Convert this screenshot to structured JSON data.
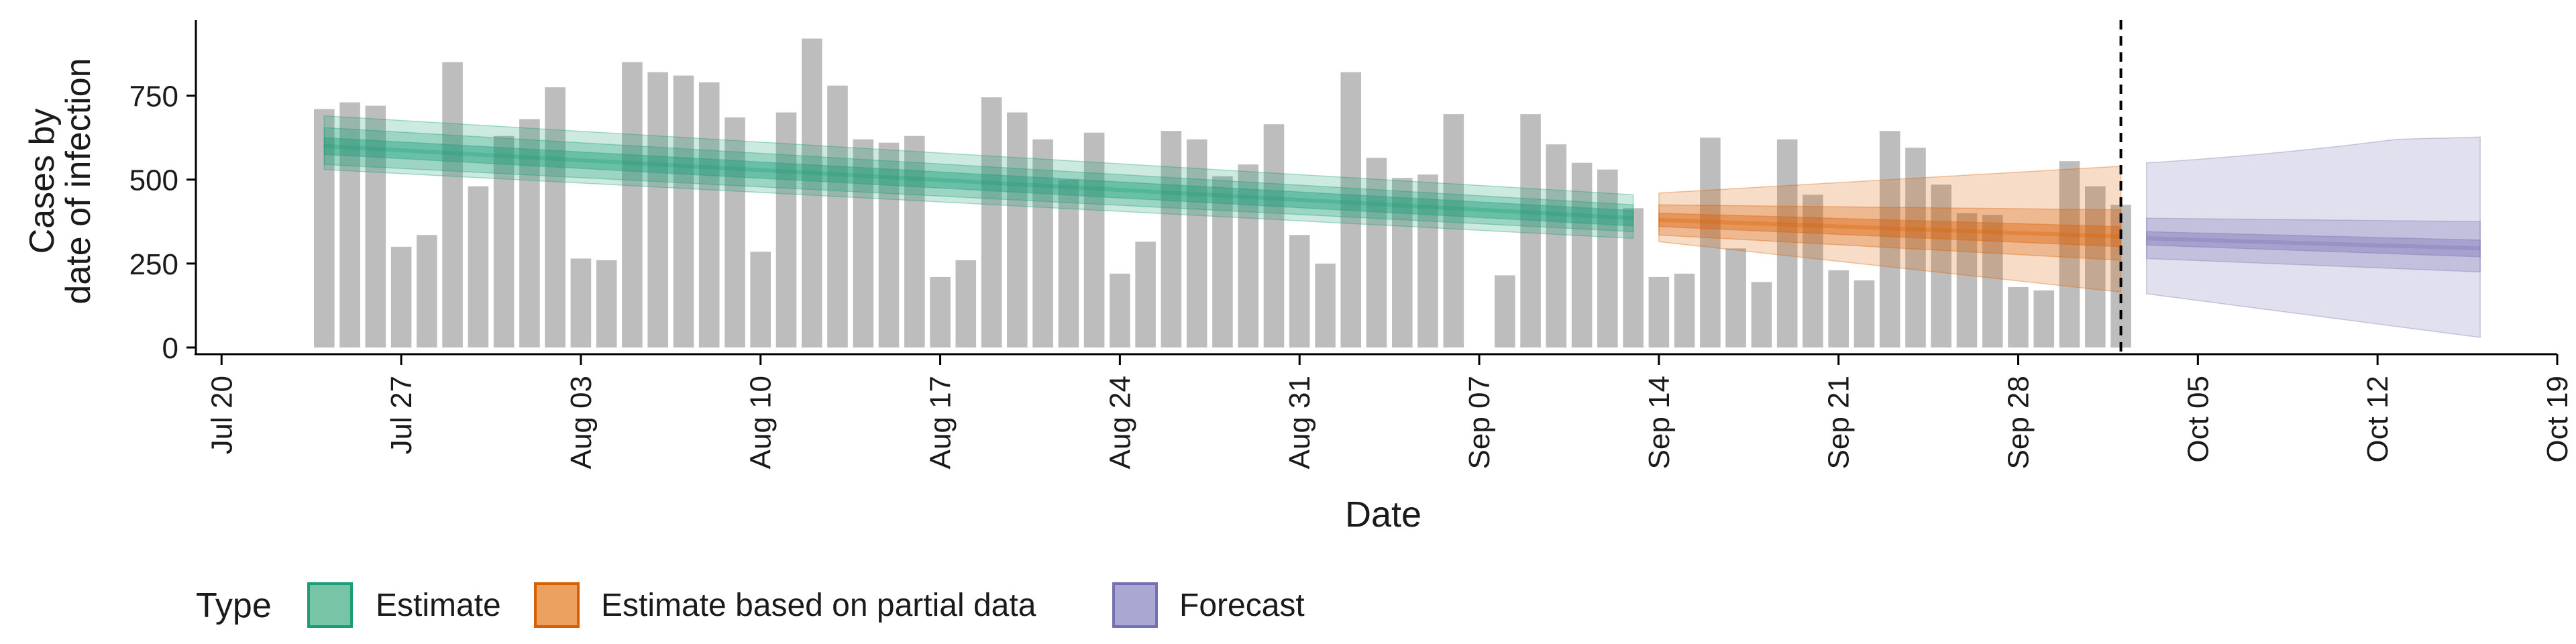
{
  "chart_data": {
    "type": "bar",
    "xlabel": "Date",
    "ylabel_lines": [
      "Cases by",
      "date of infection"
    ],
    "ylim": [
      -20,
      975
    ],
    "xlim": [
      "2020-07-19",
      "2020-10-19"
    ],
    "y_ticks": [
      0,
      250,
      500,
      750
    ],
    "y_tick_labels": [
      "0",
      "250",
      "500",
      "750"
    ],
    "x_ticks": [
      "2020-07-20",
      "2020-07-27",
      "2020-08-03",
      "2020-08-10",
      "2020-08-17",
      "2020-08-24",
      "2020-08-31",
      "2020-09-07",
      "2020-09-14",
      "2020-09-21",
      "2020-09-28",
      "2020-10-05",
      "2020-10-12",
      "2020-10-19"
    ],
    "x_tick_labels": [
      "Jul 20",
      "Jul 27",
      "Aug 03",
      "Aug 10",
      "Aug 17",
      "Aug 24",
      "Aug 31",
      "Sep 07",
      "Sep 14",
      "Sep 21",
      "Sep 28",
      "Oct 05",
      "Oct 12",
      "Oct 19"
    ],
    "grid": false,
    "legend_position": "bottom-left",
    "legend_title": "Type",
    "bar_color": "#bdbdbd",
    "dashed_line_date": "2020-10-02",
    "bars": {
      "start_date": "2020-07-24",
      "values": [
        710,
        730,
        720,
        300,
        335,
        850,
        480,
        630,
        680,
        775,
        265,
        260,
        850,
        820,
        810,
        790,
        685,
        285,
        700,
        920,
        780,
        620,
        610,
        630,
        210,
        260,
        745,
        700,
        620,
        500,
        640,
        220,
        315,
        645,
        620,
        510,
        545,
        665,
        335,
        250,
        820,
        565,
        505,
        515,
        695,
        0,
        215,
        695,
        605,
        550,
        530,
        415,
        210,
        220,
        625,
        295,
        195,
        620,
        455,
        230,
        200,
        645,
        595,
        485,
        400,
        395,
        180,
        170,
        555,
        480,
        425
      ]
    },
    "series": [
      {
        "name": "Estimate",
        "color": "#1b9e77",
        "legend_fill": "#77c4a7",
        "start_date": "2020-07-24",
        "end_date": "2020-09-13",
        "median": [
          600,
          385
        ],
        "inner": [
          [
            575,
            625
          ],
          [
            362,
            408
          ]
        ],
        "mid": [
          [
            545,
            655
          ],
          [
            345,
            425
          ]
        ],
        "outer": [
          [
            530,
            690
          ],
          [
            325,
            455
          ]
        ]
      },
      {
        "name": "Estimate based on partial data",
        "color": "#d95f02",
        "legend_fill": "#eba15f",
        "start_date": "2020-09-14",
        "end_date": "2020-10-02",
        "median": [
          380,
          330
        ],
        "inner": [
          [
            360,
            400
          ],
          [
            300,
            360
          ]
        ],
        "mid": [
          [
            335,
            425
          ],
          [
            260,
            410
          ]
        ],
        "outer": [
          [
            315,
            460
          ],
          [
            165,
            540
          ]
        ]
      },
      {
        "name": "Forecast",
        "color": "#7570b3",
        "legend_fill": "#aaa7d3",
        "start_date": "2020-10-03",
        "end_date": "2020-10-16",
        "median": [
          325,
          295
        ],
        "inner": [
          [
            305,
            345
          ],
          [
            270,
            320
          ]
        ],
        "mid": [
          [
            265,
            385
          ],
          [
            225,
            375
          ]
        ],
        "outer": [
          [
            160,
            550
          ],
          [
            30,
            610
          ]
        ],
        "outer_bulge_upper": 620
      }
    ]
  }
}
